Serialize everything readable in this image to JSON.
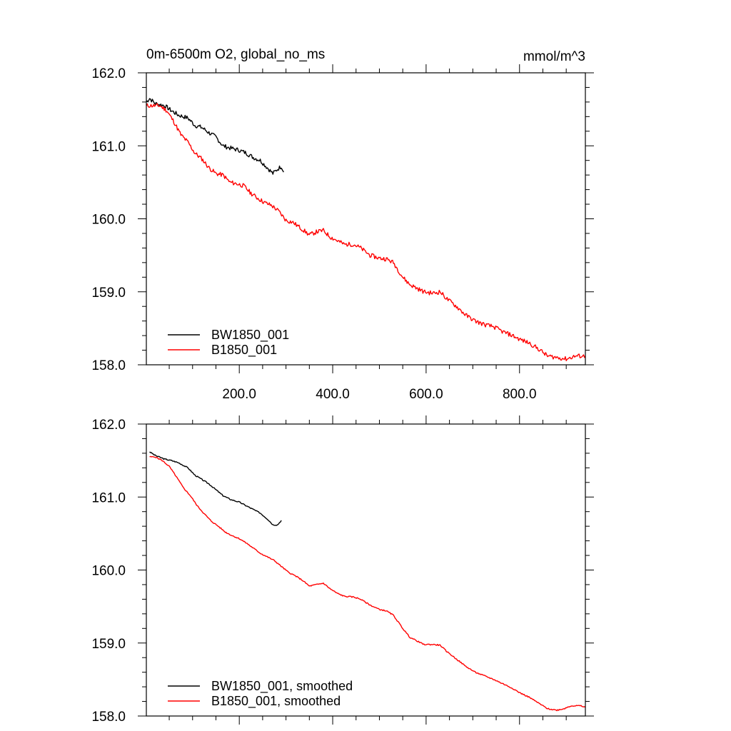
{
  "figure": {
    "title_left": "0m-6500m O2, global_no_ms",
    "title_right": "mmol/m^3"
  },
  "colors": {
    "bw": "#000000",
    "b": "#ff0000",
    "axis": "#000000"
  },
  "chart_data": [
    {
      "type": "line",
      "panel": "top",
      "xlim": [
        1,
        941
      ],
      "ylim": [
        158.0,
        162.0
      ],
      "x_ticks": [
        200,
        400,
        600,
        800
      ],
      "x_tick_labels": [
        "200.0",
        "400.0",
        "600.0",
        "800.0"
      ],
      "y_ticks": [
        158,
        159,
        160,
        161,
        162
      ],
      "y_tick_labels": [
        "158.0",
        "159.0",
        "160.0",
        "161.0",
        "162.0"
      ],
      "legend_position": "bottom-left",
      "series": [
        {
          "name": "BW1850_001",
          "color": "#000000",
          "noise": 0.03,
          "seed": 7,
          "points": [
            [
              1,
              161.6
            ],
            [
              8,
              161.65
            ],
            [
              20,
              161.58
            ],
            [
              40,
              161.55
            ],
            [
              55,
              161.48
            ],
            [
              70,
              161.42
            ],
            [
              90,
              161.38
            ],
            [
              105,
              161.28
            ],
            [
              120,
              161.25
            ],
            [
              135,
              161.18
            ],
            [
              150,
              161.12
            ],
            [
              165,
              161.0
            ],
            [
              180,
              160.97
            ],
            [
              200,
              160.94
            ],
            [
              215,
              160.9
            ],
            [
              230,
              160.84
            ],
            [
              245,
              160.8
            ],
            [
              260,
              160.7
            ],
            [
              272,
              160.62
            ],
            [
              282,
              160.68
            ],
            [
              290,
              160.72
            ],
            [
              295,
              160.64
            ]
          ]
        },
        {
          "name": "B1850_001",
          "color": "#ff0000",
          "noise": 0.03,
          "seed": 11,
          "points": [
            [
              1,
              161.55
            ],
            [
              15,
              161.55
            ],
            [
              30,
              161.55
            ],
            [
              45,
              161.48
            ],
            [
              60,
              161.33
            ],
            [
              75,
              161.15
            ],
            [
              90,
              161.05
            ],
            [
              105,
              160.9
            ],
            [
              120,
              160.82
            ],
            [
              135,
              160.7
            ],
            [
              150,
              160.62
            ],
            [
              165,
              160.6
            ],
            [
              180,
              160.5
            ],
            [
              195,
              160.48
            ],
            [
              210,
              160.45
            ],
            [
              225,
              160.35
            ],
            [
              240,
              160.28
            ],
            [
              255,
              160.22
            ],
            [
              270,
              160.18
            ],
            [
              285,
              160.1
            ],
            [
              300,
              159.98
            ],
            [
              315,
              159.95
            ],
            [
              330,
              159.88
            ],
            [
              350,
              159.78
            ],
            [
              365,
              159.82
            ],
            [
              380,
              159.84
            ],
            [
              395,
              159.75
            ],
            [
              410,
              159.7
            ],
            [
              425,
              159.65
            ],
            [
              445,
              159.65
            ],
            [
              460,
              159.6
            ],
            [
              480,
              159.5
            ],
            [
              500,
              159.46
            ],
            [
              515,
              159.45
            ],
            [
              530,
              159.4
            ],
            [
              550,
              159.2
            ],
            [
              565,
              159.1
            ],
            [
              580,
              159.05
            ],
            [
              595,
              159.0
            ],
            [
              615,
              158.98
            ],
            [
              630,
              159.0
            ],
            [
              645,
              158.9
            ],
            [
              665,
              158.8
            ],
            [
              685,
              158.68
            ],
            [
              705,
              158.6
            ],
            [
              725,
              158.55
            ],
            [
              745,
              158.52
            ],
            [
              765,
              158.45
            ],
            [
              785,
              158.4
            ],
            [
              800,
              158.35
            ],
            [
              820,
              158.3
            ],
            [
              840,
              158.22
            ],
            [
              860,
              158.12
            ],
            [
              880,
              158.1
            ],
            [
              900,
              158.08
            ],
            [
              920,
              158.12
            ],
            [
              941,
              158.12
            ]
          ]
        }
      ]
    },
    {
      "type": "line",
      "panel": "bottom",
      "xlim": [
        1,
        941
      ],
      "ylim": [
        158.0,
        162.0
      ],
      "x_ticks": [
        200,
        400,
        600,
        800
      ],
      "x_tick_labels": [],
      "y_ticks": [
        158,
        159,
        160,
        161,
        162
      ],
      "y_tick_labels": [
        "158.0",
        "159.0",
        "160.0",
        "161.0",
        "162.0"
      ],
      "legend_position": "bottom-left",
      "series": [
        {
          "name": "BW1850_001, smoothed",
          "color": "#000000",
          "noise": 0.008,
          "seed": 3,
          "points": [
            [
              8,
              161.62
            ],
            [
              20,
              161.57
            ],
            [
              40,
              161.52
            ],
            [
              55,
              161.5
            ],
            [
              70,
              161.47
            ],
            [
              90,
              161.4
            ],
            [
              105,
              161.3
            ],
            [
              120,
              161.24
            ],
            [
              135,
              161.18
            ],
            [
              150,
              161.1
            ],
            [
              165,
              161.02
            ],
            [
              180,
              160.97
            ],
            [
              200,
              160.93
            ],
            [
              215,
              160.88
            ],
            [
              230,
              160.83
            ],
            [
              245,
              160.78
            ],
            [
              260,
              160.7
            ],
            [
              272,
              160.62
            ],
            [
              282,
              160.62
            ],
            [
              290,
              160.68
            ]
          ]
        },
        {
          "name": "B1850_001, smoothed",
          "color": "#ff0000",
          "noise": 0.008,
          "seed": 5,
          "points": [
            [
              8,
              161.55
            ],
            [
              20,
              161.55
            ],
            [
              35,
              161.5
            ],
            [
              50,
              161.42
            ],
            [
              65,
              161.28
            ],
            [
              80,
              161.13
            ],
            [
              95,
              161.02
            ],
            [
              110,
              160.88
            ],
            [
              125,
              160.77
            ],
            [
              140,
              160.67
            ],
            [
              155,
              160.6
            ],
            [
              170,
              160.52
            ],
            [
              185,
              160.47
            ],
            [
              200,
              160.43
            ],
            [
              215,
              160.37
            ],
            [
              230,
              160.3
            ],
            [
              245,
              160.23
            ],
            [
              260,
              160.18
            ],
            [
              275,
              160.13
            ],
            [
              290,
              160.05
            ],
            [
              305,
              159.97
            ],
            [
              320,
              159.92
            ],
            [
              335,
              159.86
            ],
            [
              350,
              159.78
            ],
            [
              365,
              159.8
            ],
            [
              380,
              159.82
            ],
            [
              395,
              159.74
            ],
            [
              410,
              159.68
            ],
            [
              425,
              159.64
            ],
            [
              445,
              159.63
            ],
            [
              460,
              159.6
            ],
            [
              480,
              159.52
            ],
            [
              500,
              159.46
            ],
            [
              515,
              159.44
            ],
            [
              530,
              159.38
            ],
            [
              550,
              159.2
            ],
            [
              565,
              159.08
            ],
            [
              580,
              159.03
            ],
            [
              595,
              158.98
            ],
            [
              615,
              158.98
            ],
            [
              630,
              158.97
            ],
            [
              645,
              158.88
            ],
            [
              665,
              158.78
            ],
            [
              685,
              158.68
            ],
            [
              705,
              158.6
            ],
            [
              725,
              158.55
            ],
            [
              745,
              158.5
            ],
            [
              765,
              158.44
            ],
            [
              785,
              158.38
            ],
            [
              800,
              158.32
            ],
            [
              820,
              158.26
            ],
            [
              840,
              158.18
            ],
            [
              860,
              158.1
            ],
            [
              880,
              158.08
            ],
            [
              895,
              158.1
            ],
            [
              910,
              158.14
            ],
            [
              930,
              158.14
            ],
            [
              941,
              158.12
            ]
          ]
        }
      ]
    }
  ]
}
